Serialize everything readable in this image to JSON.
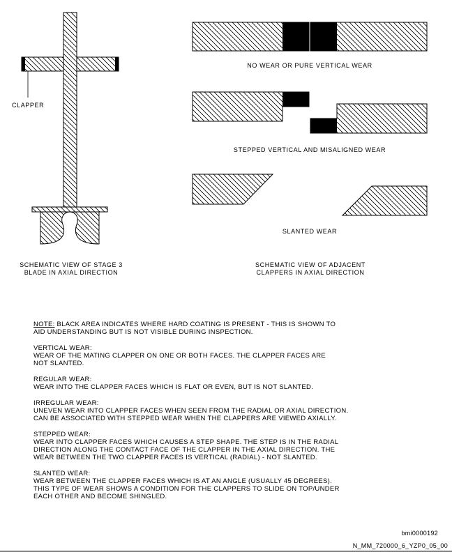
{
  "labels": {
    "clapper": "CLAPPER",
    "no_wear": "NO WEAR OR PURE VERTICAL WEAR",
    "stepped": "STEPPED VERTICAL AND MISALIGNED WEAR",
    "slanted": "SLANTED WEAR",
    "left_caption_1": "SCHEMATIC VIEW OF STAGE 3",
    "left_caption_2": "BLADE IN AXIAL DIRECTION",
    "right_caption_1": "SCHEMATIC VIEW OF ADJACENT",
    "right_caption_2": "CLAPPERS IN AXIAL DIRECTION"
  },
  "notes": {
    "note_label": "NOTE:",
    "note_text_1": " BLACK AREA INDICATES WHERE HARD COATING IS PRESENT - THIS IS SHOWN TO",
    "note_text_2": "AID UNDERSTANDING BUT IS NOT VISIBLE DURING INSPECTION.",
    "vertical_title": "VERTICAL WEAR:",
    "vertical_text_1": "WEAR OF THE MATING CLAPPER ON ONE OR BOTH FACES. THE CLAPPER FACES ARE",
    "vertical_text_2": "NOT SLANTED.",
    "regular_title": "REGULAR WEAR:",
    "regular_text_1": "WEAR INTO THE CLAPPER FACES WHICH IS FLAT OR EVEN, BUT IS NOT SLANTED.",
    "irregular_title": "IRREGULAR WEAR:",
    "irregular_text_1": "UNEVEN WEAR INTO CLAPPER FACES WHEN SEEN FROM THE RADIAL OR AXIAL DIRECTION.",
    "irregular_text_2": "CAN BE ASSOCIATED WITH STEPPED WEAR WHEN THE CLAPPERS ARE VIEWED AXIALLY.",
    "stepped_title": "STEPPED WEAR:",
    "stepped_text_1": "WEAR INTO CLAPPER FACES WHICH CAUSES A STEP SHAPE. THE STEP IS IN THE RADIAL",
    "stepped_text_2": "DIRECTION ALONG THE CONTACT FACE OF THE CLAPPER IN THE AXIAL DIRECTION. THE",
    "stepped_text_3": "WEAR BETWEEN THE TWO CLAPPER FACES IS VERTICAL (RADIAL) - NOT SLANTED.",
    "slanted_title": "SLANTED WEAR:",
    "slanted_text_1": "WEAR BETWEEN THE CLAPPER FACES WHICH IS AT AN ANGLE (USUALLY 45 DEGREES).",
    "slanted_text_2": "THIS TYPE OF WEAR SHOWS A CONDITION FOR THE CLAPPERS TO SLIDE ON TOP/UNDER",
    "slanted_text_3": "EACH OTHER AND BECOME SHINGLED."
  },
  "footer": {
    "image_id": "bmi0000192",
    "doc_id": "N_MM_720000_6_YZP0_05_00"
  }
}
